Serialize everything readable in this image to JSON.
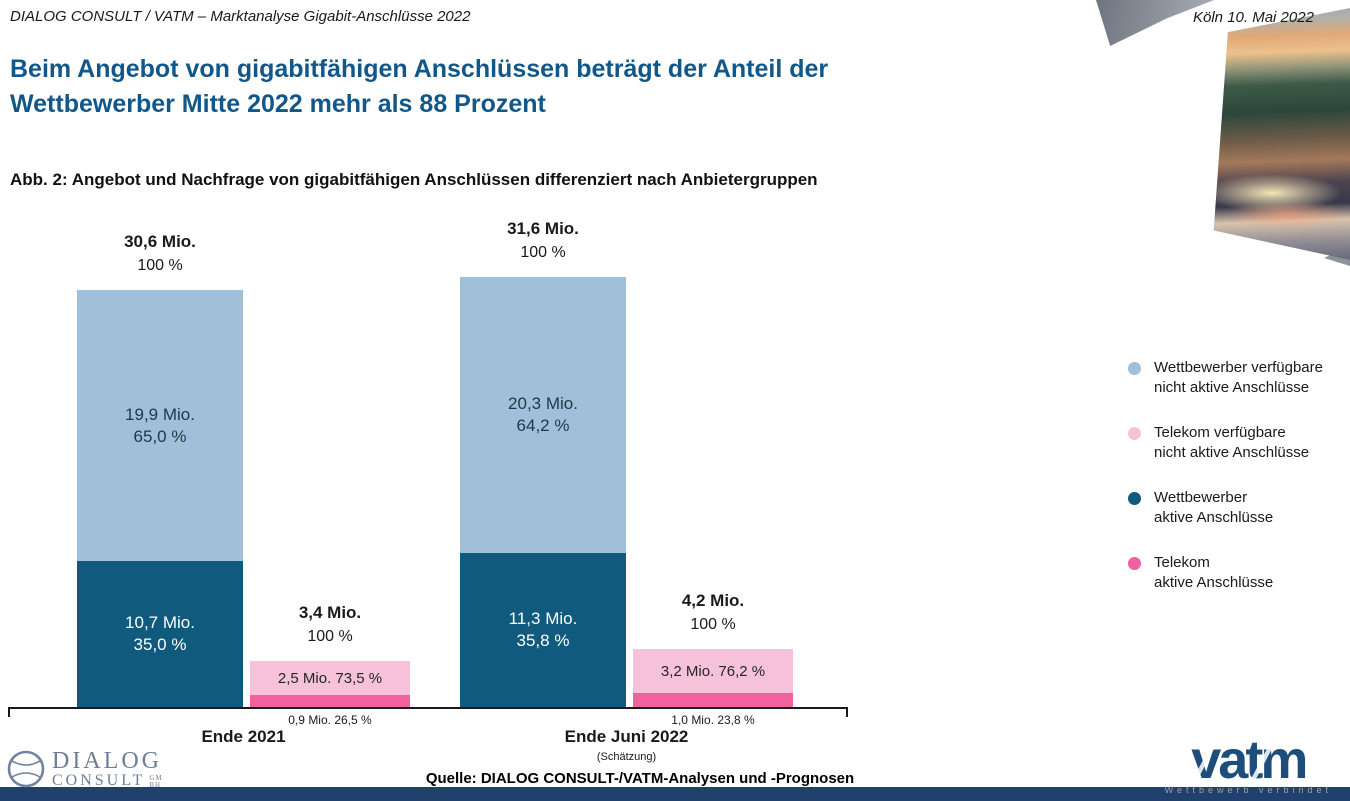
{
  "header": {
    "left": "DIALOG CONSULT / VATM – Marktanalyse Gigabit-Anschlüsse 2022",
    "right": "Köln 10. Mai 2022"
  },
  "title": "Beim Angebot von gigabitfähigen Anschlüssen beträgt der Anteil der Wettbewerber Mitte 2022 mehr als 88 Prozent",
  "figure_caption": "Abb. 2: Angebot und Nachfrage von gigabitfähigen Anschlüssen differenziert nach Anbietergruppen",
  "source": "Quelle: DIALOG CONSULT-/VATM-Analysen und -Prognosen",
  "colors": {
    "wettbewerber_inactive": "#9fc0d8",
    "telekom_inactive": "#f6c2da",
    "wettbewerber_active": "#0f5a7d",
    "telekom_active": "#f2619e",
    "title_blue": "#11578a",
    "footer_bar": "#20406e"
  },
  "legend": [
    {
      "color_key": "wettbewerber_inactive",
      "lines": [
        "Wettbewerber verfügbare",
        "nicht aktive Anschlüsse"
      ]
    },
    {
      "color_key": "telekom_inactive",
      "lines": [
        "Telekom verfügbare",
        "nicht aktive Anschlüsse"
      ]
    },
    {
      "color_key": "wettbewerber_active",
      "lines": [
        "Wettbewerber",
        "aktive Anschlüsse"
      ]
    },
    {
      "color_key": "telekom_active",
      "lines": [
        "Telekom",
        "aktive Anschlüsse"
      ]
    }
  ],
  "chart_data": {
    "type": "bar",
    "stacked": true,
    "unit": "Mio. Anschlüsse",
    "ylabel": "",
    "xlabel": "",
    "grid": false,
    "legend_position": "right",
    "groups": [
      {
        "label": "Ende 2021",
        "sublabel": "",
        "bars": [
          {
            "series": "Wettbewerber",
            "total_value": 30.6,
            "total_label": "30,6 Mio.",
            "total_pct": "100 %",
            "segments": [
              {
                "series": "Wettbewerber verfügbare nicht aktive Anschlüsse",
                "value": 19.9,
                "label": "19,9 Mio.",
                "pct": "65,0 %",
                "color_key": "wettbewerber_inactive",
                "text_color": "#1f3848",
                "label_placement": "inside"
              },
              {
                "series": "Wettbewerber aktive Anschlüsse",
                "value": 10.7,
                "label": "10,7 Mio.",
                "pct": "35,0 %",
                "color_key": "wettbewerber_active",
                "text_color": "#ffffff",
                "label_placement": "inside"
              }
            ]
          },
          {
            "series": "Telekom",
            "total_value": 3.4,
            "total_label": "3,4 Mio.",
            "total_pct": "100 %",
            "segments": [
              {
                "series": "Telekom verfügbare nicht aktive Anschlüsse",
                "value": 2.5,
                "label": "2,5 Mio.",
                "pct": "73,5 %",
                "color_key": "telekom_inactive",
                "text_color": "#262626",
                "label_placement": "inside-oneline"
              },
              {
                "series": "Telekom aktive Anschlüsse",
                "value": 0.9,
                "label": "0,9 Mio.",
                "pct": "26,5 %",
                "color_key": "telekom_active",
                "text_color": "#1a1a1a",
                "label_placement": "below-axis"
              }
            ]
          }
        ]
      },
      {
        "label": "Ende Juni 2022",
        "sublabel": "(Schätzung)",
        "bars": [
          {
            "series": "Wettbewerber",
            "total_value": 31.6,
            "total_label": "31,6 Mio.",
            "total_pct": "100 %",
            "segments": [
              {
                "series": "Wettbewerber verfügbare nicht aktive Anschlüsse",
                "value": 20.3,
                "label": "20,3 Mio.",
                "pct": "64,2 %",
                "color_key": "wettbewerber_inactive",
                "text_color": "#1f3848",
                "label_placement": "inside"
              },
              {
                "series": "Wettbewerber aktive Anschlüsse",
                "value": 11.3,
                "label": "11,3 Mio.",
                "pct": "35,8 %",
                "color_key": "wettbewerber_active",
                "text_color": "#ffffff",
                "label_placement": "inside"
              }
            ]
          },
          {
            "series": "Telekom",
            "total_value": 4.2,
            "total_label": "4,2 Mio.",
            "total_pct": "100 %",
            "segments": [
              {
                "series": "Telekom verfügbare nicht aktive Anschlüsse",
                "value": 3.2,
                "label": "3,2 Mio.",
                "pct": "76,2 %",
                "color_key": "telekom_inactive",
                "text_color": "#262626",
                "label_placement": "inside-oneline"
              },
              {
                "series": "Telekom aktive Anschlüsse",
                "value": 1.0,
                "label": "1,0 Mio.",
                "pct": "23,8 %",
                "color_key": "telekom_active",
                "text_color": "#1a1a1a",
                "label_placement": "below-axis"
              }
            ]
          }
        ]
      }
    ]
  },
  "logos": {
    "dialog_consult": {
      "line1": "DIALOG",
      "line2": "CONSULT",
      "suffix": "GMBH"
    },
    "vatm": {
      "word": "vatm",
      "tagline": "Wettbewerb verbindet"
    }
  }
}
